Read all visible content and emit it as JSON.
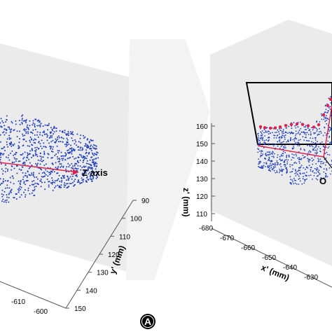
{
  "chart_data": [
    {
      "type": "scatter",
      "title": "",
      "annotation_label": "Z axis",
      "axes": {
        "y_label": "y' (mm)",
        "y_ticks": [
          "90",
          "100",
          "110",
          "120",
          "130",
          "140",
          "150"
        ],
        "x_ticks": [
          "-610",
          "-600"
        ]
      },
      "colors": {
        "points": "#1f3fbf",
        "axis_line": "#e0204a"
      }
    },
    {
      "type": "scatter",
      "title": "",
      "origin_label": "O",
      "axes": {
        "z_label": "z' (mm)",
        "z_ticks": [
          "160",
          "150",
          "140",
          "130",
          "120",
          "110"
        ],
        "x_label": "x' (mm)",
        "x_ticks": [
          "-680",
          "-670",
          "-660",
          "-650",
          "-640",
          "-630"
        ],
        "z_range": [
          110,
          160
        ]
      },
      "colors": {
        "points": "#1f3fbf",
        "contour_points": "#e0204a",
        "outline": "#000000"
      }
    }
  ],
  "panel_marker": "A"
}
